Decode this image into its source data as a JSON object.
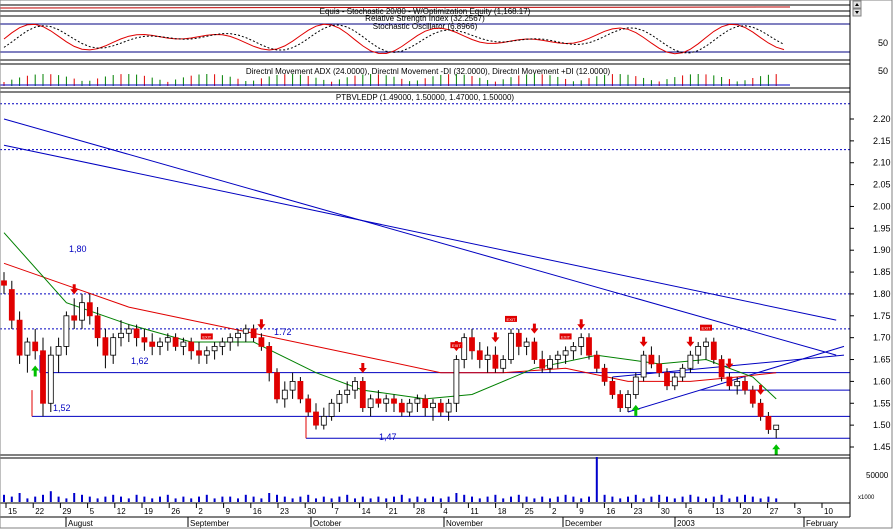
{
  "panels": {
    "equity": {
      "title": "Equis - Stochastic 20/80 - W/Optimization Equity (1,168.17)"
    },
    "rsi": {
      "title": "Relative Strength Index (32.2567)",
      "tick": "50"
    },
    "stochastic": {
      "title": "Stochastic Oscillator (6.8966)"
    },
    "dmi": {
      "title": "Directnl Movement ADX (24.0000), Directnl Movement -DI (32.0000), Directnl Movement +DI (12.0000)",
      "tick": "50"
    },
    "price": {
      "title": "PTBVLEDP (1.49000, 1.50000, 1.47000, 1.50000)"
    },
    "volume": {
      "tick": "50000",
      "multiplier": "x1000"
    }
  },
  "annotations": {
    "level_180": "1,80",
    "level_172": "1.72",
    "level_162": "1,62",
    "level_152": "1,52",
    "level_147": "1,47",
    "signal_text": "EXIT"
  },
  "colors": {
    "bull_candle": "#ffffff",
    "bear_candle": "#e00000",
    "ma_short": "#008000",
    "ma_long": "#e00000",
    "trendline": "#0000c0",
    "arrow_down": "#e00000",
    "arrow_up": "#00c000",
    "volume": "#0000cc"
  },
  "chart_data": {
    "type": "candlestick",
    "y_ticks": [
      "2.20",
      "2.15",
      "2.10",
      "2.05",
      "2.00",
      "1.95",
      "1.90",
      "1.85",
      "1.80",
      "1.75",
      "1.70",
      "1.65",
      "1.60",
      "1.55",
      "1.50",
      "1.45"
    ],
    "ylim": [
      1.4,
      2.25
    ],
    "x_tick_labels": [
      "15",
      "22",
      "29",
      "5",
      "12",
      "19",
      "26",
      "2",
      "9",
      "16",
      "23",
      "30",
      "7",
      "14",
      "21",
      "28",
      "4",
      "11",
      "18",
      "25",
      "2",
      "9",
      "16",
      "23",
      "30",
      "6",
      "13",
      "20",
      "27",
      "3",
      "10"
    ],
    "month_labels": [
      "August",
      "September",
      "October",
      "November",
      "December",
      "2003",
      "February"
    ],
    "horizontal_levels": [
      2.235,
      2.13,
      1.8,
      1.72,
      1.62,
      1.58,
      1.52,
      1.47
    ],
    "ohlc": [
      [
        1.83,
        1.85,
        1.8,
        1.82
      ],
      [
        1.81,
        1.83,
        1.72,
        1.74
      ],
      [
        1.74,
        1.76,
        1.64,
        1.66
      ],
      [
        1.66,
        1.7,
        1.62,
        1.69
      ],
      [
        1.69,
        1.72,
        1.65,
        1.67
      ],
      [
        1.67,
        1.7,
        1.52,
        1.55
      ],
      [
        1.55,
        1.68,
        1.53,
        1.66
      ],
      [
        1.66,
        1.7,
        1.62,
        1.68
      ],
      [
        1.68,
        1.76,
        1.66,
        1.75
      ],
      [
        1.75,
        1.79,
        1.72,
        1.74
      ],
      [
        1.74,
        1.8,
        1.72,
        1.78
      ],
      [
        1.78,
        1.8,
        1.73,
        1.75
      ],
      [
        1.75,
        1.77,
        1.68,
        1.7
      ],
      [
        1.7,
        1.72,
        1.63,
        1.66
      ],
      [
        1.66,
        1.71,
        1.64,
        1.7
      ],
      [
        1.7,
        1.74,
        1.68,
        1.71
      ],
      [
        1.71,
        1.73,
        1.69,
        1.72
      ],
      [
        1.72,
        1.73,
        1.68,
        1.7
      ],
      [
        1.7,
        1.72,
        1.67,
        1.69
      ],
      [
        1.69,
        1.71,
        1.66,
        1.68
      ],
      [
        1.68,
        1.7,
        1.66,
        1.69
      ],
      [
        1.69,
        1.71,
        1.67,
        1.7
      ],
      [
        1.7,
        1.71,
        1.67,
        1.68
      ],
      [
        1.68,
        1.7,
        1.66,
        1.69
      ],
      [
        1.69,
        1.7,
        1.65,
        1.67
      ],
      [
        1.67,
        1.69,
        1.64,
        1.66
      ],
      [
        1.66,
        1.68,
        1.64,
        1.67
      ],
      [
        1.67,
        1.69,
        1.65,
        1.68
      ],
      [
        1.68,
        1.7,
        1.66,
        1.69
      ],
      [
        1.69,
        1.71,
        1.67,
        1.7
      ],
      [
        1.7,
        1.72,
        1.68,
        1.71
      ],
      [
        1.71,
        1.73,
        1.69,
        1.72
      ],
      [
        1.72,
        1.73,
        1.69,
        1.7
      ],
      [
        1.7,
        1.71,
        1.67,
        1.68
      ],
      [
        1.68,
        1.69,
        1.6,
        1.62
      ],
      [
        1.62,
        1.63,
        1.55,
        1.56
      ],
      [
        1.56,
        1.6,
        1.54,
        1.58
      ],
      [
        1.58,
        1.62,
        1.56,
        1.6
      ],
      [
        1.6,
        1.61,
        1.55,
        1.56
      ],
      [
        1.56,
        1.57,
        1.52,
        1.53
      ],
      [
        1.53,
        1.55,
        1.49,
        1.5
      ],
      [
        1.5,
        1.54,
        1.49,
        1.52
      ],
      [
        1.52,
        1.56,
        1.51,
        1.55
      ],
      [
        1.55,
        1.58,
        1.53,
        1.57
      ],
      [
        1.57,
        1.6,
        1.55,
        1.58
      ],
      [
        1.58,
        1.61,
        1.56,
        1.6
      ],
      [
        1.6,
        1.61,
        1.53,
        1.54
      ],
      [
        1.54,
        1.57,
        1.52,
        1.56
      ],
      [
        1.56,
        1.58,
        1.54,
        1.55
      ],
      [
        1.55,
        1.57,
        1.53,
        1.56
      ],
      [
        1.56,
        1.57,
        1.53,
        1.55
      ],
      [
        1.55,
        1.56,
        1.52,
        1.53
      ],
      [
        1.53,
        1.56,
        1.52,
        1.55
      ],
      [
        1.55,
        1.57,
        1.53,
        1.56
      ],
      [
        1.56,
        1.57,
        1.52,
        1.54
      ],
      [
        1.54,
        1.56,
        1.51,
        1.55
      ],
      [
        1.55,
        1.56,
        1.52,
        1.53
      ],
      [
        1.53,
        1.56,
        1.51,
        1.55
      ],
      [
        1.55,
        1.66,
        1.53,
        1.65
      ],
      [
        1.65,
        1.71,
        1.63,
        1.7
      ],
      [
        1.7,
        1.72,
        1.65,
        1.67
      ],
      [
        1.67,
        1.69,
        1.63,
        1.65
      ],
      [
        1.65,
        1.68,
        1.62,
        1.66
      ],
      [
        1.66,
        1.68,
        1.62,
        1.63
      ],
      [
        1.63,
        1.66,
        1.62,
        1.65
      ],
      [
        1.65,
        1.72,
        1.64,
        1.71
      ],
      [
        1.71,
        1.72,
        1.66,
        1.68
      ],
      [
        1.68,
        1.7,
        1.66,
        1.69
      ],
      [
        1.69,
        1.7,
        1.64,
        1.65
      ],
      [
        1.65,
        1.67,
        1.62,
        1.63
      ],
      [
        1.63,
        1.66,
        1.62,
        1.65
      ],
      [
        1.65,
        1.67,
        1.63,
        1.66
      ],
      [
        1.66,
        1.68,
        1.64,
        1.67
      ],
      [
        1.67,
        1.69,
        1.65,
        1.68
      ],
      [
        1.68,
        1.71,
        1.66,
        1.7
      ],
      [
        1.7,
        1.71,
        1.65,
        1.66
      ],
      [
        1.66,
        1.67,
        1.62,
        1.63
      ],
      [
        1.63,
        1.64,
        1.59,
        1.6
      ],
      [
        1.6,
        1.61,
        1.56,
        1.57
      ],
      [
        1.57,
        1.58,
        1.53,
        1.54
      ],
      [
        1.54,
        1.58,
        1.53,
        1.57
      ],
      [
        1.57,
        1.62,
        1.56,
        1.61
      ],
      [
        1.61,
        1.67,
        1.6,
        1.66
      ],
      [
        1.66,
        1.68,
        1.63,
        1.64
      ],
      [
        1.64,
        1.66,
        1.61,
        1.62
      ],
      [
        1.62,
        1.63,
        1.58,
        1.59
      ],
      [
        1.59,
        1.62,
        1.58,
        1.61
      ],
      [
        1.61,
        1.64,
        1.6,
        1.63
      ],
      [
        1.63,
        1.67,
        1.62,
        1.66
      ],
      [
        1.66,
        1.69,
        1.64,
        1.68
      ],
      [
        1.68,
        1.7,
        1.65,
        1.69
      ],
      [
        1.69,
        1.7,
        1.64,
        1.65
      ],
      [
        1.65,
        1.66,
        1.6,
        1.61
      ],
      [
        1.61,
        1.62,
        1.58,
        1.59
      ],
      [
        1.59,
        1.61,
        1.57,
        1.6
      ],
      [
        1.6,
        1.61,
        1.57,
        1.58
      ],
      [
        1.58,
        1.59,
        1.54,
        1.55
      ],
      [
        1.55,
        1.56,
        1.51,
        1.52
      ],
      [
        1.52,
        1.53,
        1.48,
        1.49
      ],
      [
        1.49,
        1.5,
        1.47,
        1.5
      ]
    ],
    "ma_short": [
      [
        0,
        1.94
      ],
      [
        8,
        1.78
      ],
      [
        16,
        1.73
      ],
      [
        24,
        1.69
      ],
      [
        32,
        1.69
      ],
      [
        40,
        1.62
      ],
      [
        46,
        1.58
      ],
      [
        54,
        1.56
      ],
      [
        60,
        1.57
      ],
      [
        68,
        1.63
      ],
      [
        76,
        1.66
      ],
      [
        84,
        1.64
      ],
      [
        90,
        1.65
      ],
      [
        96,
        1.61
      ],
      [
        99,
        1.56
      ]
    ],
    "ma_long": [
      [
        0,
        1.87
      ],
      [
        8,
        1.82
      ],
      [
        16,
        1.77
      ],
      [
        24,
        1.74
      ],
      [
        32,
        1.71
      ],
      [
        40,
        1.68
      ],
      [
        48,
        1.65
      ],
      [
        56,
        1.62
      ],
      [
        64,
        1.62
      ],
      [
        72,
        1.63
      ],
      [
        80,
        1.6
      ],
      [
        88,
        1.6
      ],
      [
        94,
        1.61
      ],
      [
        99,
        1.62
      ]
    ],
    "trendlines": [
      {
        "from": [
          0,
          2.2
        ],
        "to": [
          99,
          1.66
        ]
      },
      {
        "from": [
          0,
          2.14
        ],
        "to": [
          99,
          1.74
        ]
      },
      {
        "from": [
          80,
          1.53
        ],
        "to": [
          100,
          1.68
        ]
      },
      {
        "from": [
          78,
          1.61
        ],
        "to": [
          100,
          1.66
        ]
      }
    ],
    "down_arrows": [
      9,
      33,
      46,
      58,
      63,
      68,
      74,
      82,
      88,
      93,
      97
    ],
    "up_arrows": [
      4,
      81,
      99
    ],
    "exit_labels": [
      26,
      58,
      65,
      72,
      90
    ],
    "volume": [
      4,
      3,
      5,
      2,
      3,
      4,
      6,
      3,
      2,
      5,
      4,
      3,
      2,
      3,
      4,
      3,
      2,
      4,
      3,
      2,
      3,
      4,
      2,
      3,
      2,
      3,
      4,
      2,
      3,
      3,
      2,
      4,
      3,
      2,
      5,
      4,
      3,
      2,
      3,
      4,
      2,
      3,
      2,
      3,
      4,
      2,
      3,
      2,
      3,
      2,
      3,
      4,
      2,
      3,
      2,
      3,
      2,
      3,
      5,
      4,
      3,
      2,
      3,
      4,
      2,
      3,
      4,
      3,
      2,
      3,
      2,
      3,
      4,
      3,
      2,
      3,
      25,
      4,
      3,
      2,
      3,
      4,
      2,
      3,
      4,
      3,
      2,
      3,
      4,
      3,
      2,
      3,
      4,
      2,
      3,
      4,
      3,
      2,
      3,
      2
    ]
  }
}
